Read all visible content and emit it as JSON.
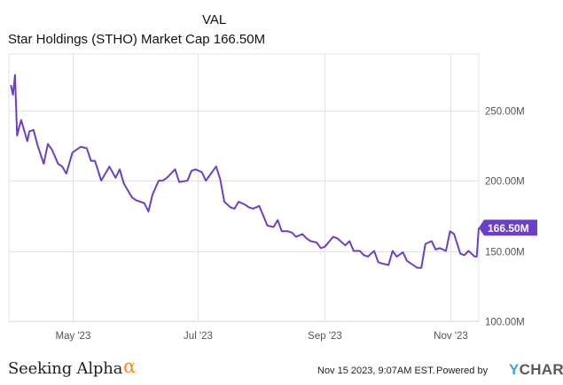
{
  "header": {
    "val_label": "VAL",
    "title": "Star Holdings (STHO) Market Cap 166.50M"
  },
  "footer": {
    "logo_text": "Seeking Alpha",
    "logo_symbol": "α",
    "timestamp": "Nov 15 2023, 9:07AM EST.",
    "powered_by": "Powered by",
    "brand_y": "Y",
    "brand_rest": "CHARTS"
  },
  "colors": {
    "line": "#6c3fc9",
    "grid": "#e3e3e3",
    "axis_text": "#555555",
    "badge_bg": "#6c3fc9",
    "badge_text": "#ffffff",
    "logo_accent": "#f28c1b",
    "brand_y": "#3fa2d9"
  },
  "chart_data": {
    "type": "line",
    "title": "Star Holdings (STHO) Market Cap 166.50M",
    "xlabel": "",
    "ylabel": "",
    "xlim": [
      "2023-03-31",
      "2023-11-15"
    ],
    "ylim": [
      100,
      290
    ],
    "y_ticks": [
      100,
      150,
      200,
      250
    ],
    "y_tick_labels": [
      "100.00M",
      "150.00M",
      "200.00M",
      "250.00M"
    ],
    "x_ticks": [
      "2023-05-01",
      "2023-07-01",
      "2023-09-01",
      "2023-11-01"
    ],
    "x_tick_labels": [
      "May '23",
      "Jul '23",
      "Sep '23",
      "Nov '23"
    ],
    "grid": true,
    "last_value_label": "166.50M",
    "series": [
      {
        "x": [
          "2023-04-01",
          "2023-04-02",
          "2023-04-03",
          "2023-04-04",
          "2023-04-05",
          "2023-04-06",
          "2023-04-07",
          "2023-04-09",
          "2023-04-10",
          "2023-04-12",
          "2023-04-14",
          "2023-04-17",
          "2023-04-19",
          "2023-04-21",
          "2023-04-24",
          "2023-04-26",
          "2023-04-28",
          "2023-05-01",
          "2023-05-03",
          "2023-05-05",
          "2023-05-08",
          "2023-05-10",
          "2023-05-12",
          "2023-05-15",
          "2023-05-17",
          "2023-05-19",
          "2023-05-22",
          "2023-05-24",
          "2023-05-26",
          "2023-05-30",
          "2023-06-01",
          "2023-06-05",
          "2023-06-07",
          "2023-06-09",
          "2023-06-12",
          "2023-06-14",
          "2023-06-16",
          "2023-06-20",
          "2023-06-22",
          "2023-06-26",
          "2023-06-28",
          "2023-06-30",
          "2023-07-03",
          "2023-07-05",
          "2023-07-07",
          "2023-07-10",
          "2023-07-12",
          "2023-07-14",
          "2023-07-17",
          "2023-07-19",
          "2023-07-21",
          "2023-07-24",
          "2023-07-26",
          "2023-07-28",
          "2023-07-31",
          "2023-08-02",
          "2023-08-04",
          "2023-08-07",
          "2023-08-09",
          "2023-08-11",
          "2023-08-14",
          "2023-08-16",
          "2023-08-18",
          "2023-08-21",
          "2023-08-23",
          "2023-08-25",
          "2023-08-28",
          "2023-08-30",
          "2023-09-01",
          "2023-09-05",
          "2023-09-07",
          "2023-09-11",
          "2023-09-13",
          "2023-09-15",
          "2023-09-18",
          "2023-09-20",
          "2023-09-22",
          "2023-09-25",
          "2023-09-27",
          "2023-09-29",
          "2023-10-02",
          "2023-10-04",
          "2023-10-06",
          "2023-10-09",
          "2023-10-11",
          "2023-10-13",
          "2023-10-16",
          "2023-10-18",
          "2023-10-20",
          "2023-10-23",
          "2023-10-25",
          "2023-10-27",
          "2023-10-30",
          "2023-11-01",
          "2023-11-03",
          "2023-11-06",
          "2023-11-08",
          "2023-11-10",
          "2023-11-13",
          "2023-11-14",
          "2023-11-15"
        ],
        "values": [
          268,
          261,
          275,
          232,
          238,
          243,
          238,
          228,
          235,
          236,
          225,
          212,
          226,
          222,
          212,
          210,
          205,
          220,
          222,
          224,
          223,
          214,
          214,
          200,
          205,
          210,
          202,
          208,
          198,
          188,
          186,
          184,
          178,
          190,
          200,
          200,
          202,
          208,
          199,
          200,
          207,
          208,
          206,
          200,
          204,
          210,
          201,
          185,
          181,
          180,
          185,
          183,
          181,
          180,
          182,
          175,
          168,
          167,
          172,
          164,
          164,
          163,
          160,
          162,
          159,
          157,
          156,
          152,
          153,
          160,
          159,
          154,
          157,
          150,
          150,
          147,
          146,
          150,
          142,
          141,
          140,
          150,
          146,
          149,
          143,
          141,
          138,
          138,
          155,
          157,
          151,
          152,
          150,
          164,
          162,
          148,
          147,
          150,
          146,
          146,
          166.5
        ]
      }
    ]
  }
}
